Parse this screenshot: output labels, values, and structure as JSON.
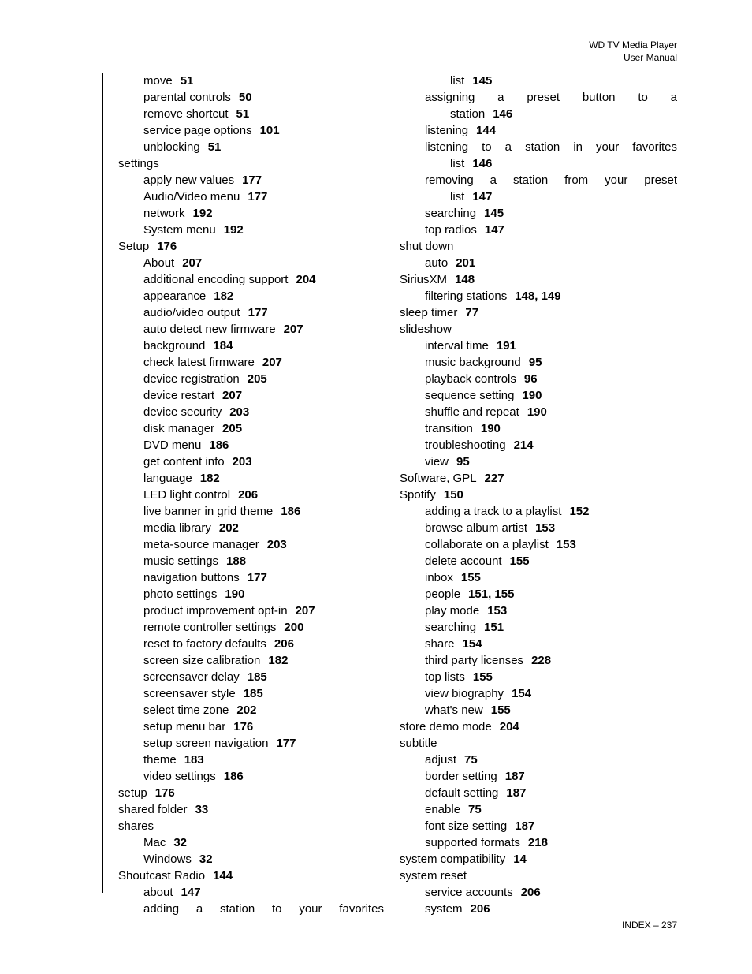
{
  "header": {
    "line1": "WD TV Media Player",
    "line2": "User Manual"
  },
  "footer": "INDEX – 237",
  "left_column": [
    {
      "level": 2,
      "label": "move",
      "pages": "51"
    },
    {
      "level": 2,
      "label": "parental controls",
      "pages": "50"
    },
    {
      "level": 2,
      "label": "remove shortcut",
      "pages": "51"
    },
    {
      "level": 2,
      "label": "service page options",
      "pages": "101"
    },
    {
      "level": 2,
      "label": "unblocking",
      "pages": "51"
    },
    {
      "level": 1,
      "label": "settings",
      "pages": ""
    },
    {
      "level": 2,
      "label": "apply new values",
      "pages": "177"
    },
    {
      "level": 2,
      "label": "Audio/Video menu",
      "pages": "177"
    },
    {
      "level": 2,
      "label": "network",
      "pages": "192"
    },
    {
      "level": 2,
      "label": "System menu",
      "pages": "192"
    },
    {
      "level": 1,
      "label": "Setup",
      "pages": "176"
    },
    {
      "level": 2,
      "label": "About",
      "pages": "207"
    },
    {
      "level": 2,
      "label": "additional encoding support",
      "pages": "204"
    },
    {
      "level": 2,
      "label": "appearance",
      "pages": "182"
    },
    {
      "level": 2,
      "label": "audio/video output",
      "pages": "177"
    },
    {
      "level": 2,
      "label": "auto detect new firmware",
      "pages": "207"
    },
    {
      "level": 2,
      "label": "background",
      "pages": "184"
    },
    {
      "level": 2,
      "label": "check latest firmware",
      "pages": "207"
    },
    {
      "level": 2,
      "label": "device registration",
      "pages": "205"
    },
    {
      "level": 2,
      "label": "device restart",
      "pages": "207"
    },
    {
      "level": 2,
      "label": "device security",
      "pages": "203"
    },
    {
      "level": 2,
      "label": "disk manager",
      "pages": "205"
    },
    {
      "level": 2,
      "label": "DVD menu",
      "pages": "186"
    },
    {
      "level": 2,
      "label": "get content info",
      "pages": "203"
    },
    {
      "level": 2,
      "label": "language",
      "pages": "182"
    },
    {
      "level": 2,
      "label": "LED light control",
      "pages": "206"
    },
    {
      "level": 2,
      "label": "live banner in grid theme",
      "pages": "186"
    },
    {
      "level": 2,
      "label": "media library",
      "pages": "202"
    },
    {
      "level": 2,
      "label": "meta-source manager",
      "pages": "203"
    },
    {
      "level": 2,
      "label": "music settings",
      "pages": "188"
    },
    {
      "level": 2,
      "label": "navigation buttons",
      "pages": "177"
    },
    {
      "level": 2,
      "label": "photo settings",
      "pages": "190"
    },
    {
      "level": 2,
      "label": "product improvement opt-in",
      "pages": "207"
    },
    {
      "level": 2,
      "label": "remote controller settings",
      "pages": "200"
    },
    {
      "level": 2,
      "label": "reset to factory defaults",
      "pages": "206"
    },
    {
      "level": 2,
      "label": "screen size calibration",
      "pages": "182"
    },
    {
      "level": 2,
      "label": "screensaver delay",
      "pages": "185"
    },
    {
      "level": 2,
      "label": "screensaver style",
      "pages": "185"
    },
    {
      "level": 2,
      "label": "select time zone",
      "pages": "202"
    },
    {
      "level": 2,
      "label": "setup menu bar",
      "pages": "176"
    },
    {
      "level": 2,
      "label": "setup screen navigation",
      "pages": "177"
    },
    {
      "level": 2,
      "label": "theme",
      "pages": "183"
    },
    {
      "level": 2,
      "label": "video settings",
      "pages": "186"
    },
    {
      "level": 1,
      "label": "setup",
      "pages": "176"
    },
    {
      "level": 1,
      "label": "shared folder",
      "pages": "33"
    },
    {
      "level": 1,
      "label": "shares",
      "pages": ""
    },
    {
      "level": 2,
      "label": "Mac",
      "pages": "32"
    },
    {
      "level": 2,
      "label": "Windows",
      "pages": "32"
    },
    {
      "level": 1,
      "label": "Shoutcast Radio",
      "pages": "144"
    },
    {
      "level": 2,
      "label": "about",
      "pages": "147"
    },
    {
      "level": 2,
      "label": "adding a station to your favorites",
      "pages": "",
      "justify": true
    }
  ],
  "right_column": [
    {
      "level": 2,
      "label": "",
      "cont": "list",
      "pages": "145",
      "cont_indent": 2
    },
    {
      "level": 2,
      "label": "assigning a preset button to a",
      "pages": "",
      "justify": true
    },
    {
      "level": 2,
      "label": "",
      "cont": "station",
      "pages": "146",
      "cont_indent": 2
    },
    {
      "level": 2,
      "label": "listening",
      "pages": "144"
    },
    {
      "level": 2,
      "label": "listening to a station in your favorites",
      "pages": "",
      "justify": true
    },
    {
      "level": 2,
      "label": "",
      "cont": "list",
      "pages": "146",
      "cont_indent": 2
    },
    {
      "level": 2,
      "label": "removing a station from your preset",
      "pages": "",
      "justify": true
    },
    {
      "level": 2,
      "label": "",
      "cont": "list",
      "pages": "147",
      "cont_indent": 2
    },
    {
      "level": 2,
      "label": "searching",
      "pages": "145"
    },
    {
      "level": 2,
      "label": "top radios",
      "pages": "147"
    },
    {
      "level": 1,
      "label": "shut down",
      "pages": ""
    },
    {
      "level": 2,
      "label": "auto",
      "pages": "201"
    },
    {
      "level": 1,
      "label": "SiriusXM",
      "pages": "148"
    },
    {
      "level": 2,
      "label": "filtering stations",
      "pages": "148, 149"
    },
    {
      "level": 1,
      "label": "sleep timer",
      "pages": "77"
    },
    {
      "level": 1,
      "label": "slideshow",
      "pages": ""
    },
    {
      "level": 2,
      "label": "interval time",
      "pages": "191"
    },
    {
      "level": 2,
      "label": "music background",
      "pages": "95"
    },
    {
      "level": 2,
      "label": "playback controls",
      "pages": "96"
    },
    {
      "level": 2,
      "label": "sequence setting",
      "pages": "190"
    },
    {
      "level": 2,
      "label": "shuffle and repeat",
      "pages": "190"
    },
    {
      "level": 2,
      "label": "transition",
      "pages": "190"
    },
    {
      "level": 2,
      "label": "troubleshooting",
      "pages": "214"
    },
    {
      "level": 2,
      "label": "view",
      "pages": "95"
    },
    {
      "level": 1,
      "label": "Software, GPL",
      "pages": "227"
    },
    {
      "level": 1,
      "label": "Spotify",
      "pages": "150"
    },
    {
      "level": 2,
      "label": "adding a track to a playlist",
      "pages": "152"
    },
    {
      "level": 2,
      "label": "browse album artist",
      "pages": "153"
    },
    {
      "level": 2,
      "label": "collaborate on a playlist",
      "pages": "153"
    },
    {
      "level": 2,
      "label": "delete account",
      "pages": "155"
    },
    {
      "level": 2,
      "label": "inbox",
      "pages": "155"
    },
    {
      "level": 2,
      "label": "people",
      "pages": "151, 155"
    },
    {
      "level": 2,
      "label": "play mode",
      "pages": "153"
    },
    {
      "level": 2,
      "label": "searching",
      "pages": "151"
    },
    {
      "level": 2,
      "label": "share",
      "pages": "154"
    },
    {
      "level": 2,
      "label": "third party licenses",
      "pages": "228"
    },
    {
      "level": 2,
      "label": "top lists",
      "pages": "155"
    },
    {
      "level": 2,
      "label": "view biography",
      "pages": "154"
    },
    {
      "level": 2,
      "label": "what's new",
      "pages": "155"
    },
    {
      "level": 1,
      "label": "store demo mode",
      "pages": "204"
    },
    {
      "level": 1,
      "label": "subtitle",
      "pages": ""
    },
    {
      "level": 2,
      "label": "adjust",
      "pages": "75"
    },
    {
      "level": 2,
      "label": "border setting",
      "pages": "187"
    },
    {
      "level": 2,
      "label": "default setting",
      "pages": "187"
    },
    {
      "level": 2,
      "label": "enable",
      "pages": "75"
    },
    {
      "level": 2,
      "label": "font size setting",
      "pages": "187"
    },
    {
      "level": 2,
      "label": "supported formats",
      "pages": "218"
    },
    {
      "level": 1,
      "label": "system compatibility",
      "pages": "14"
    },
    {
      "level": 1,
      "label": "system reset",
      "pages": ""
    },
    {
      "level": 2,
      "label": "service accounts",
      "pages": "206"
    },
    {
      "level": 2,
      "label": "system",
      "pages": "206"
    }
  ]
}
